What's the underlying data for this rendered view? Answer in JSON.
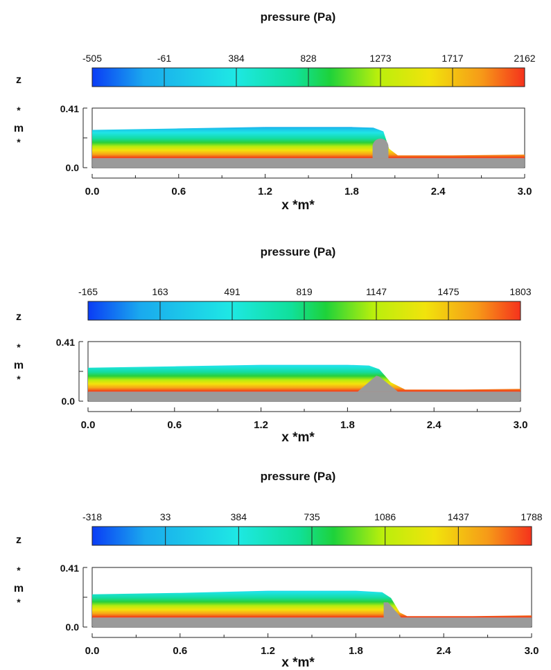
{
  "chart_data": [
    {
      "type": "heatmap",
      "title": "pressure (Pa)",
      "colorbar_ticks": [
        -505,
        -61,
        384,
        828,
        1273,
        1717,
        2162
      ],
      "colorbar_labels": [
        "-505",
        "-61",
        "384",
        "828",
        "1273",
        "1717",
        "2162"
      ],
      "xlabel": "x *m*",
      "ylabel": [
        "z",
        "*",
        "m",
        "*"
      ],
      "xlim": [
        0.0,
        3.0
      ],
      "ylim": [
        0.0,
        0.41
      ],
      "x_tick_labels": [
        "0.0",
        "0.6",
        "1.2",
        "1.8",
        "2.4",
        "3.0"
      ],
      "y_tick_labels": [
        "0.41",
        "0.0"
      ],
      "obstacle": "rounded",
      "free_surface": [
        [
          0,
          0.26
        ],
        [
          0.6,
          0.27
        ],
        [
          1.2,
          0.28
        ],
        [
          1.8,
          0.28
        ],
        [
          1.95,
          0.275
        ],
        [
          2.02,
          0.25
        ],
        [
          2.06,
          0.13
        ],
        [
          2.12,
          0.085
        ],
        [
          2.5,
          0.085
        ],
        [
          3.0,
          0.09
        ]
      ]
    },
    {
      "type": "heatmap",
      "title": "pressure (Pa)",
      "colorbar_ticks": [
        -165,
        163,
        491,
        819,
        1147,
        1475,
        1803
      ],
      "colorbar_labels": [
        "-165",
        "163",
        "491",
        "819",
        "1147",
        "1475",
        "1803"
      ],
      "xlabel": "x *m*",
      "ylabel": [
        "z",
        "*",
        "m",
        "*"
      ],
      "xlim": [
        0.0,
        3.0
      ],
      "ylim": [
        0.0,
        0.41
      ],
      "x_tick_labels": [
        "0.0",
        "0.6",
        "1.2",
        "1.8",
        "2.4",
        "3.0"
      ],
      "y_tick_labels": [
        "0.41",
        "0.0"
      ],
      "obstacle": "triangular",
      "free_surface": [
        [
          0,
          0.23
        ],
        [
          0.6,
          0.24
        ],
        [
          1.2,
          0.25
        ],
        [
          1.8,
          0.25
        ],
        [
          1.95,
          0.245
        ],
        [
          2.02,
          0.22
        ],
        [
          2.1,
          0.13
        ],
        [
          2.2,
          0.08
        ],
        [
          2.6,
          0.08
        ],
        [
          3.0,
          0.085
        ]
      ]
    },
    {
      "type": "heatmap",
      "title": "pressure (Pa)",
      "colorbar_ticks": [
        -318,
        33,
        384,
        735,
        1086,
        1437,
        1788
      ],
      "colorbar_labels": [
        "-318",
        "33",
        "384",
        "735",
        "1086",
        "1437",
        "1788"
      ],
      "xlabel": "x *m*",
      "ylabel": [
        "z",
        "*",
        "m",
        "*"
      ],
      "xlim": [
        0.0,
        3.0
      ],
      "ylim": [
        0.0,
        0.41
      ],
      "x_tick_labels": [
        "0.0",
        "0.6",
        "1.2",
        "1.8",
        "2.4",
        "3.0"
      ],
      "y_tick_labels": [
        "0.41",
        "0.0"
      ],
      "obstacle": "sloped",
      "free_surface": [
        [
          0,
          0.225
        ],
        [
          0.6,
          0.235
        ],
        [
          1.2,
          0.25
        ],
        [
          1.8,
          0.25
        ],
        [
          1.98,
          0.24
        ],
        [
          2.04,
          0.2
        ],
        [
          2.1,
          0.1
        ],
        [
          2.15,
          0.075
        ],
        [
          2.6,
          0.075
        ],
        [
          3.0,
          0.08
        ]
      ]
    }
  ]
}
